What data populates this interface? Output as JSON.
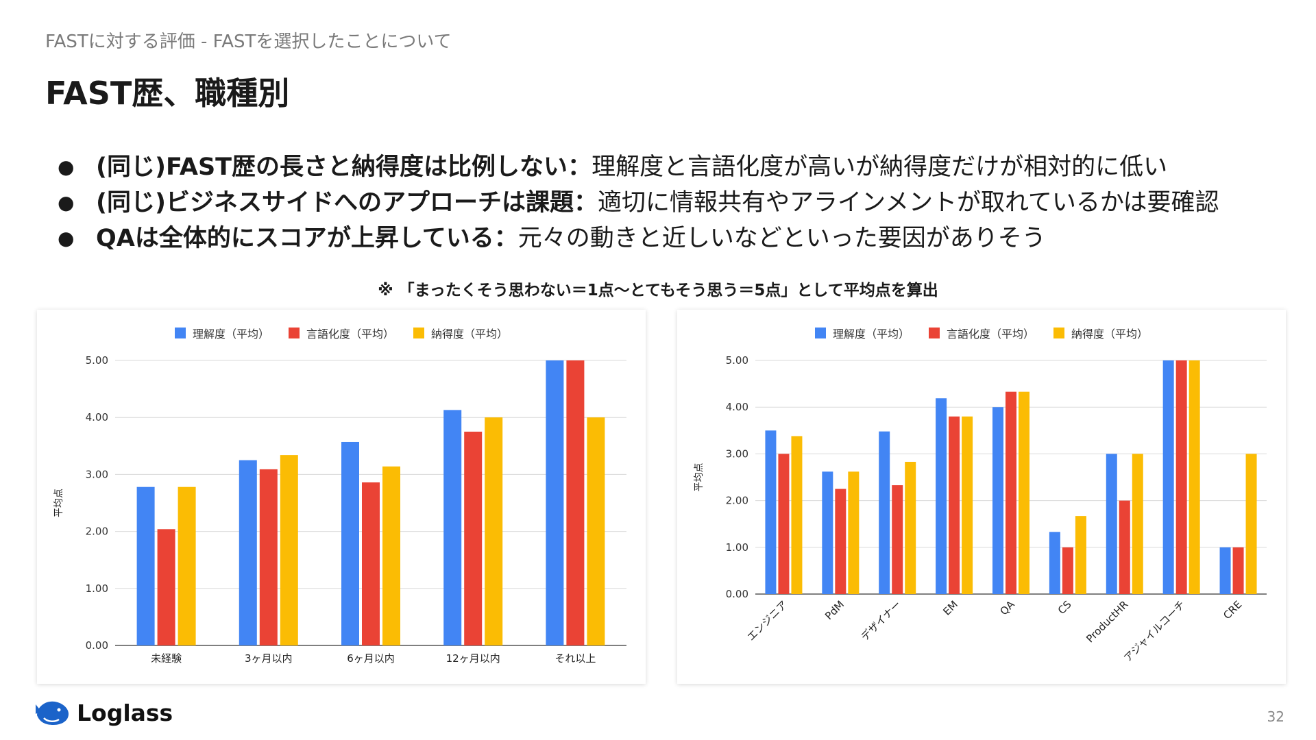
{
  "header": {
    "subtitle": "FASTに対する評価 - FASTを選択したことについて",
    "title": "FAST歴、職種別"
  },
  "bullets": [
    {
      "bold": "(同じ)FAST歴の長さと納得度は比例しない：",
      "text": "理解度と言語化度が高いが納得度だけが相対的に低い"
    },
    {
      "bold": "(同じ)ビジネスサイドへのアプローチは課題：",
      "text": "適切に情報共有やアラインメントが取れているかは要確認"
    },
    {
      "bold": "QAは全体的にスコアが上昇している：",
      "text": "元々の動きと近しいなどといった要因がありそう"
    }
  ],
  "note": "※ 「まったくそう思わない＝1点〜とてもそう思う＝5点」として平均点を算出",
  "colors": {
    "series1": "#4285F4",
    "series2": "#EA4335",
    "series3": "#FBBC04",
    "grid": "#d9d9d9"
  },
  "chart_data": [
    {
      "type": "bar",
      "legend_position": "top",
      "ylabel": "平均点",
      "ylim": [
        0,
        5
      ],
      "yticks": [
        "0.00",
        "1.00",
        "2.00",
        "3.00",
        "4.00",
        "5.00"
      ],
      "categories": [
        "未経験",
        "3ヶ月以内",
        "6ヶ月以内",
        "12ヶ月以内",
        "それ以上"
      ],
      "series": [
        {
          "name": "理解度（平均）",
          "values": [
            2.78,
            3.25,
            3.57,
            4.13,
            5.0
          ]
        },
        {
          "name": "言語化度（平均）",
          "values": [
            2.04,
            3.09,
            2.86,
            3.75,
            5.0
          ]
        },
        {
          "name": "納得度（平均）",
          "values": [
            2.78,
            3.34,
            3.14,
            4.0,
            4.0
          ]
        }
      ]
    },
    {
      "type": "bar",
      "legend_position": "top",
      "ylabel": "平均点",
      "ylim": [
        0,
        5
      ],
      "yticks": [
        "0.00",
        "1.00",
        "2.00",
        "3.00",
        "4.00",
        "5.00"
      ],
      "categories": [
        "エンジニア",
        "PdM",
        "デザイナー",
        "EM",
        "QA",
        "CS",
        "ProductHR",
        "アジャイルコーチ",
        "CRE"
      ],
      "series": [
        {
          "name": "理解度（平均）",
          "values": [
            3.5,
            2.62,
            3.48,
            4.19,
            4.0,
            1.33,
            3.0,
            5.0,
            1.0
          ]
        },
        {
          "name": "言語化度（平均）",
          "values": [
            3.0,
            2.25,
            2.33,
            3.8,
            4.33,
            1.0,
            2.0,
            5.0,
            1.0
          ]
        },
        {
          "name": "納得度（平均）",
          "values": [
            3.38,
            2.62,
            2.83,
            3.8,
            4.33,
            1.67,
            3.0,
            5.0,
            3.0
          ]
        }
      ]
    }
  ],
  "footer": {
    "logo_text": "Loglass",
    "logo_icon": "whale-icon",
    "page_number": "32"
  }
}
